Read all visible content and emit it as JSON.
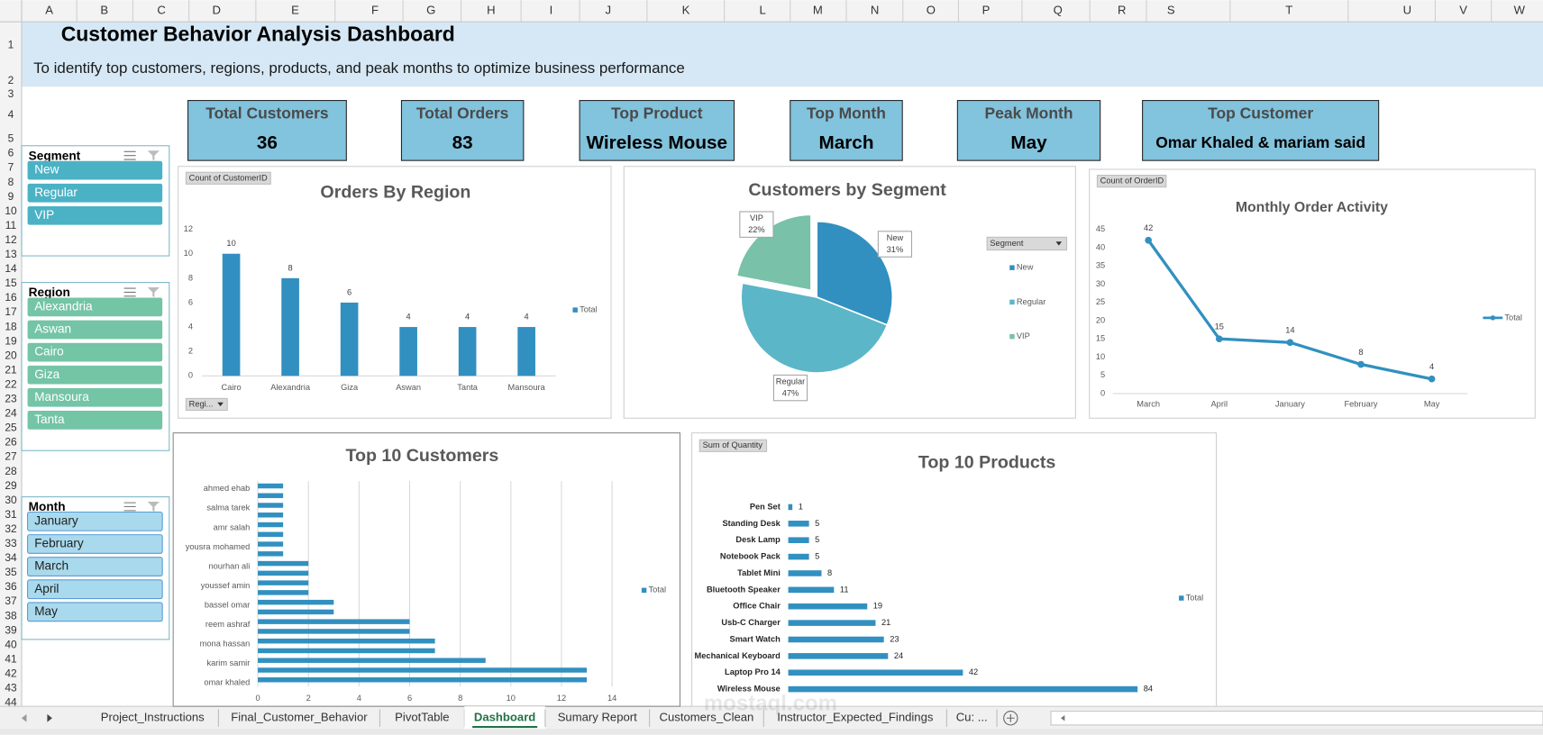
{
  "sheet": {
    "columns": [
      "A",
      "B",
      "C",
      "D",
      "E",
      "F",
      "G",
      "H",
      "I",
      "J",
      "K",
      "L",
      "M",
      "N",
      "O",
      "P",
      "Q",
      "R",
      "S",
      "T",
      "U",
      "V",
      "W"
    ],
    "rows": [
      1,
      2,
      3,
      4,
      5,
      6,
      7,
      8,
      9,
      10,
      11,
      12,
      13,
      14,
      15,
      16,
      17,
      18,
      19,
      20,
      21,
      22,
      23,
      24,
      25,
      26,
      27,
      28,
      29,
      30,
      31,
      32,
      33,
      34,
      35,
      36,
      37,
      38,
      39,
      40,
      41,
      42,
      43,
      44
    ]
  },
  "header": {
    "title": "Customer Behavior Analysis Dashboard",
    "subtitle": "To identify top customers, regions, products, and peak months to optimize business performance"
  },
  "kpis": [
    {
      "label": "Total Customers",
      "value": 36
    },
    {
      "label": "Total Orders",
      "value": 83
    },
    {
      "label": "Top Product",
      "value": "Wireless Mouse"
    },
    {
      "label": "Top Month",
      "value": "March"
    },
    {
      "label": "Peak Month",
      "value": "May"
    },
    {
      "label": "Top Customer",
      "value": "Omar Khaled & mariam said"
    }
  ],
  "slicers": [
    {
      "title": "Segment",
      "items": [
        "New",
        "Regular",
        "VIP"
      ],
      "color": "#4bb2c5",
      "text_color": "#ffffff"
    },
    {
      "title": "Region",
      "items": [
        "Alexandria",
        "Aswan",
        "Cairo",
        "Giza",
        "Mansoura",
        "Tanta"
      ],
      "color": "#74c4a6",
      "text_color": "#ffffff"
    },
    {
      "title": "Month",
      "items": [
        "January",
        "February",
        "March",
        "April",
        "May"
      ],
      "color": "#a9d9ec",
      "text_color": "#1f1f1f"
    }
  ],
  "chart_data": [
    {
      "type": "bar",
      "title": "Orders By Region",
      "field_button": "Count of CustomerID",
      "filter_button": "Regi...",
      "categories": [
        "Cairo",
        "Alexandria",
        "Giza",
        "Aswan",
        "Tanta",
        "Mansoura"
      ],
      "series": [
        {
          "name": "Total",
          "color": "#3190c0",
          "values": [
            10,
            8,
            6,
            4,
            4,
            4
          ]
        }
      ],
      "ylim": [
        0,
        12
      ],
      "yticks": [
        0,
        2,
        4,
        6,
        8,
        10,
        12
      ]
    },
    {
      "type": "pie",
      "title": "Customers by Segment",
      "legend_title": "Segment",
      "categories": [
        "New",
        "Regular",
        "VIP"
      ],
      "values": [
        31,
        47,
        22
      ],
      "value_labels": [
        "31%",
        "47%",
        "22%"
      ],
      "colors": [
        "#3190c0",
        "#5bb6c8",
        "#79c1a8"
      ],
      "exploded": [
        false,
        false,
        true
      ]
    },
    {
      "type": "line",
      "title": "Monthly Order Activity",
      "field_button": "Count of OrderID",
      "categories": [
        "March",
        "April",
        "January",
        "February",
        "May"
      ],
      "series": [
        {
          "name": "Total",
          "color": "#3190c0",
          "values": [
            42,
            15,
            14,
            8,
            4
          ]
        }
      ],
      "ylim": [
        0,
        45
      ],
      "yticks": [
        0,
        5,
        10,
        15,
        20,
        25,
        30,
        35,
        40,
        45
      ]
    },
    {
      "type": "hbar",
      "title": "Top 10 Customers",
      "categories": [
        "ahmed ehab",
        null,
        "salma tarek",
        null,
        "amr salah",
        null,
        "yousra mohamed",
        null,
        "nourhan ali",
        null,
        "youssef amin",
        null,
        "bassel omar",
        null,
        "reem ashraf",
        null,
        "mona hassan",
        null,
        "karim samir",
        null,
        "omar khaled"
      ],
      "series": [
        {
          "name": "Total",
          "color": "#3190c0",
          "values": [
            1,
            1,
            1,
            1,
            1,
            1,
            1,
            1,
            2,
            2,
            2,
            2,
            3,
            3,
            6,
            6,
            7,
            7,
            9,
            13,
            13
          ]
        }
      ],
      "xlim": [
        0,
        14
      ],
      "xticks": [
        0,
        2,
        4,
        6,
        8,
        10,
        12,
        14
      ],
      "grid": true
    },
    {
      "type": "hbar",
      "title": "Top 10 Products",
      "field_button": "Sum of Quantity",
      "categories": [
        "Pen Set",
        "Standing Desk",
        "Desk Lamp",
        "Notebook Pack",
        "Tablet Mini",
        "Bluetooth Speaker",
        "Office Chair",
        "Usb-C Charger",
        "Smart Watch",
        "Mechanical Keyboard",
        "Laptop Pro 14",
        "Wireless Mouse"
      ],
      "series": [
        {
          "name": "Total",
          "color": "#3190c0",
          "values": [
            1,
            5,
            5,
            5,
            8,
            11,
            19,
            21,
            23,
            24,
            42,
            84
          ]
        }
      ],
      "data_labels": true
    }
  ],
  "tabs": [
    "Project_Instructions",
    "Final_Customer_Behavior",
    "PivotTable",
    "Dashboard",
    "Sumary Report",
    "Customers_Clean",
    "Instructor_Expected_Findings",
    "Cu: ..."
  ],
  "active_tab": 3,
  "watermark": "mostaql.com"
}
